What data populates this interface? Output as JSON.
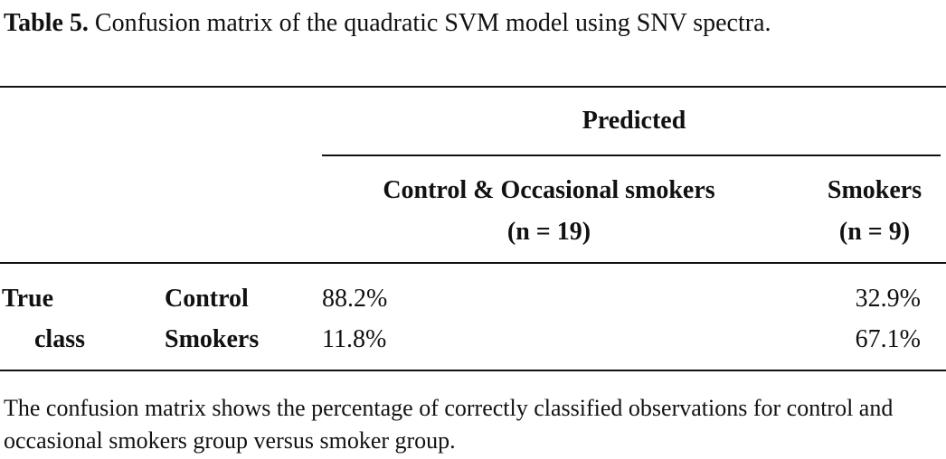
{
  "caption": {
    "label": "Table 5.",
    "text": "Confusion matrix of the quadratic SVM model using SNV spectra."
  },
  "table": {
    "predicted_header": "Predicted",
    "columns": [
      {
        "line1": "Control & Occasional smokers",
        "line2": "(n = 19)"
      },
      {
        "line1": "Smokers",
        "line2": "(n = 9)"
      }
    ],
    "true_class_label": {
      "line1": "True",
      "line2": "class"
    },
    "rows": [
      {
        "label": "Control",
        "values": [
          "88.2%",
          "32.9%"
        ]
      },
      {
        "label": "Smokers",
        "values": [
          "11.8%",
          "67.1%"
        ]
      }
    ]
  },
  "footnote": "The confusion matrix shows the percentage of correctly classified observations for control and occasional smokers group versus smoker group."
}
